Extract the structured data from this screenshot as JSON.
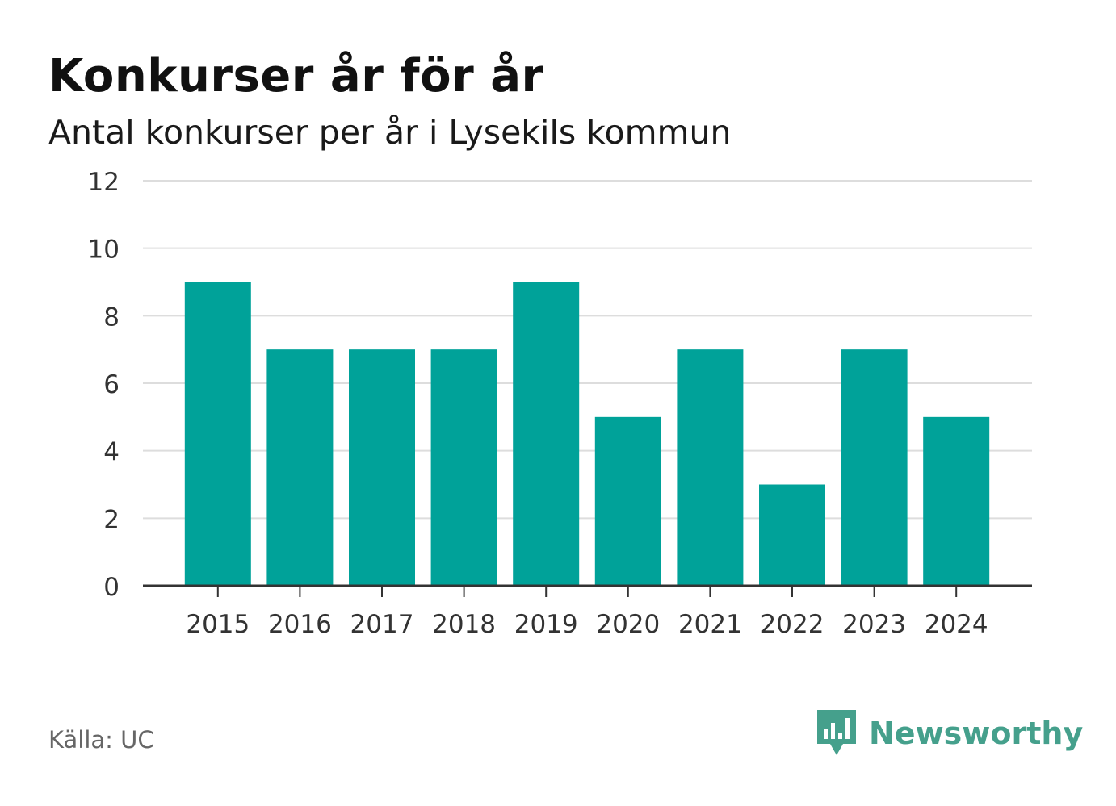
{
  "header": {
    "title": "Konkurser år för år",
    "subtitle": "Antal konkurser per år i Lysekils kommun"
  },
  "footer": {
    "source": "Källa: UC",
    "brand": "Newsworthy",
    "brand_icon": "bar-chart-speech-bubble-icon"
  },
  "colors": {
    "bar": "#00a299",
    "grid": "#dddddd",
    "axis": "#333333",
    "brand": "#45a08c"
  },
  "chart_data": {
    "type": "bar",
    "title": "Konkurser år för år",
    "subtitle": "Antal konkurser per år i Lysekils kommun",
    "xlabel": "",
    "ylabel": "",
    "categories": [
      "2015",
      "2016",
      "2017",
      "2018",
      "2019",
      "2020",
      "2021",
      "2022",
      "2023",
      "2024"
    ],
    "values": [
      9,
      7,
      7,
      7,
      9,
      5,
      7,
      3,
      7,
      5
    ],
    "ylim": [
      0,
      12
    ],
    "yticks": [
      0,
      2,
      4,
      6,
      8,
      10,
      12
    ],
    "grid": true,
    "legend": "none"
  }
}
